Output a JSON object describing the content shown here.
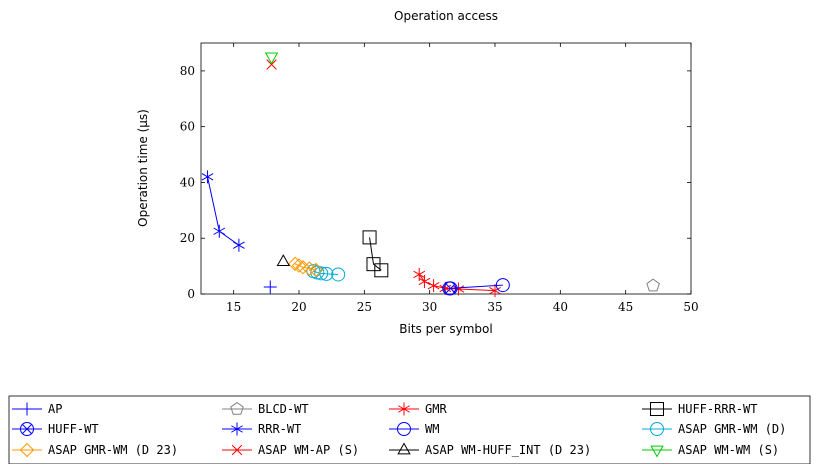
{
  "chart_data": {
    "type": "scatter",
    "title": "Operation access",
    "xlabel": "Bits per symbol",
    "ylabel": "Operation time (µs)",
    "xlim": [
      12.5,
      50
    ],
    "ylim": [
      0,
      90
    ],
    "xticks": [
      15,
      20,
      25,
      30,
      35,
      40,
      45,
      50
    ],
    "yticks": [
      0,
      20,
      40,
      60,
      80
    ],
    "grid": false,
    "legend_position": "bottom",
    "series": [
      {
        "name": "AP",
        "color": "#0000ff",
        "marker": "plus",
        "x": [
          17.8
        ],
        "y": [
          2.5
        ]
      },
      {
        "name": "BLCD-WT",
        "color": "#808080",
        "marker": "pentagon",
        "x": [
          47.1
        ],
        "y": [
          3
        ]
      },
      {
        "name": "GMR",
        "color": "#ff0000",
        "marker": "asterisk",
        "x": [
          29.2,
          29.6,
          30.3,
          31.2,
          32.2,
          35.0
        ],
        "y": [
          7,
          4.5,
          3,
          2,
          1.8,
          1.2
        ]
      },
      {
        "name": "HUFF-RRR-WT",
        "color": "#000000",
        "marker": "square",
        "x": [
          25.4,
          25.7,
          26.3
        ],
        "y": [
          20.3,
          10.7,
          8.5
        ]
      },
      {
        "name": "HUFF-WT",
        "color": "#0000ff",
        "marker": "circle-x",
        "x": [
          31.6
        ],
        "y": [
          2
        ]
      },
      {
        "name": "RRR-WT",
        "color": "#0000ff",
        "marker": "asterisk",
        "x": [
          13.0,
          13.9,
          15.4
        ],
        "y": [
          42,
          22.5,
          17.5
        ]
      },
      {
        "name": "WM",
        "color": "#0000ff",
        "marker": "circle",
        "x": [
          31.5,
          35.6
        ],
        "y": [
          2,
          3.2
        ]
      },
      {
        "name": "ASAP GMR-WM (D)",
        "color": "#00aadd",
        "marker": "circle",
        "x": [
          21.1,
          21.4,
          21.7,
          22.1,
          23.0
        ],
        "y": [
          8.2,
          7.7,
          7.4,
          7.2,
          7.0
        ]
      },
      {
        "name": "ASAP GMR-WM (D 23)",
        "color": "#ff9900",
        "marker": "diamond",
        "x": [
          19.7,
          20.0,
          20.3,
          20.8,
          21.3
        ],
        "y": [
          10.8,
          10.2,
          9.6,
          9.1,
          8.6
        ]
      },
      {
        "name": "ASAP WM-AP (S)",
        "color": "#ff0000",
        "marker": "cross",
        "x": [
          17.9
        ],
        "y": [
          82.3
        ]
      },
      {
        "name": "ASAP WM-HUFF_INT (D 23)",
        "color": "#000000",
        "marker": "triangle",
        "x": [
          18.8
        ],
        "y": [
          11.6
        ]
      },
      {
        "name": "ASAP WM-WM (S)",
        "color": "#00cc00",
        "marker": "triangle-down",
        "x": [
          17.9
        ],
        "y": [
          85
        ]
      }
    ]
  }
}
